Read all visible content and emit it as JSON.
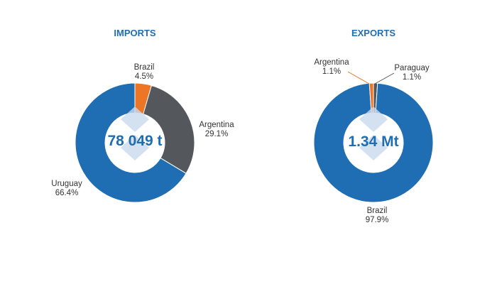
{
  "colors": {
    "blue": "#1f6db3",
    "orange": "#ec7625",
    "dark_gray": "#54575c",
    "title": "#1f6db3",
    "watermark": "#c9d9ee"
  },
  "chart_data": [
    {
      "type": "pie",
      "title": "IMPORTS",
      "center_text": "78 049 t",
      "slices": [
        {
          "label": "Brazil",
          "pct_label": "4.5%",
          "value": 4.5,
          "color": "#ec7625"
        },
        {
          "label": "Argentina",
          "pct_label": "29.1%",
          "value": 29.1,
          "color": "#54575c"
        },
        {
          "label": "Uruguay",
          "pct_label": "66.4%",
          "value": 66.4,
          "color": "#1f6db3"
        }
      ]
    },
    {
      "type": "pie",
      "title": "EXPORTS",
      "center_text": "1.34 Mt",
      "slices": [
        {
          "label": "Paraguay",
          "pct_label": "1.1%",
          "value": 1.1,
          "color": "#54575c"
        },
        {
          "label": "Brazil",
          "pct_label": "97.9%",
          "value": 97.9,
          "color": "#1f6db3"
        },
        {
          "label": "Argentina",
          "pct_label": "1.1%",
          "value": 1.1,
          "color": "#ec7625"
        }
      ]
    }
  ]
}
